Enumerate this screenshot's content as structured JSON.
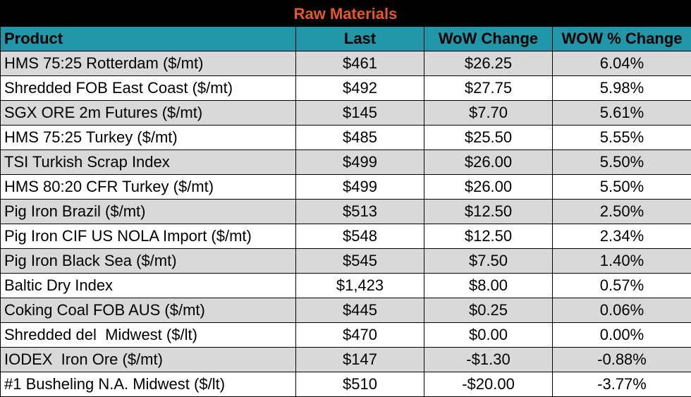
{
  "title": "Raw Materials",
  "headers": [
    "Product",
    "Last",
    "WoW Change",
    "WOW % Change"
  ],
  "rows": [
    {
      "product": "HMS 75:25 Rotterdam ($/mt)",
      "last": "$461",
      "wow_change": "$26.25",
      "wow_pct": "6.04%"
    },
    {
      "product": "Shredded FOB East Coast ($/mt)",
      "last": "$492",
      "wow_change": "$27.75",
      "wow_pct": "5.98%"
    },
    {
      "product": "SGX ORE 2m Futures ($/mt)",
      "last": "$145",
      "wow_change": "$7.70",
      "wow_pct": "5.61%"
    },
    {
      "product": "HMS 75:25 Turkey ($/mt)",
      "last": "$485",
      "wow_change": "$25.50",
      "wow_pct": "5.55%"
    },
    {
      "product": "TSI Turkish Scrap Index",
      "last": "$499",
      "wow_change": "$26.00",
      "wow_pct": "5.50%"
    },
    {
      "product": "HMS 80:20 CFR Turkey ($/mt)",
      "last": "$499",
      "wow_change": "$26.00",
      "wow_pct": "5.50%"
    },
    {
      "product": "Pig Iron Brazil ($/mt)",
      "last": "$513",
      "wow_change": "$12.50",
      "wow_pct": "2.50%"
    },
    {
      "product": "Pig Iron CIF US NOLA Import ($/mt)",
      "last": "$548",
      "wow_change": "$12.50",
      "wow_pct": "2.34%"
    },
    {
      "product": "Pig Iron Black Sea ($/mt)",
      "last": "$545",
      "wow_change": "$7.50",
      "wow_pct": "1.40%"
    },
    {
      "product": "Baltic Dry Index",
      "last": "$1,423",
      "wow_change": "$8.00",
      "wow_pct": "0.57%"
    },
    {
      "product": "Coking Coal FOB AUS ($/mt)",
      "last": "$445",
      "wow_change": "$0.25",
      "wow_pct": "0.06%"
    },
    {
      "product": "Shredded del  Midwest ($/lt)",
      "last": "$470",
      "wow_change": "$0.00",
      "wow_pct": "0.00%"
    },
    {
      "product": "IODEX  Iron Ore ($/mt)",
      "last": "$147",
      "wow_change": "-$1.30",
      "wow_pct": "-0.88%"
    },
    {
      "product": "#1 Busheling N.A. Midwest ($/lt)",
      "last": "$510",
      "wow_change": "-$20.00",
      "wow_pct": "-3.77%"
    }
  ],
  "colors": {
    "title_bg": "#000000",
    "title_text": "#e8572a",
    "header_bg": "#2196a8",
    "row_shade": "#d9d9d9"
  }
}
